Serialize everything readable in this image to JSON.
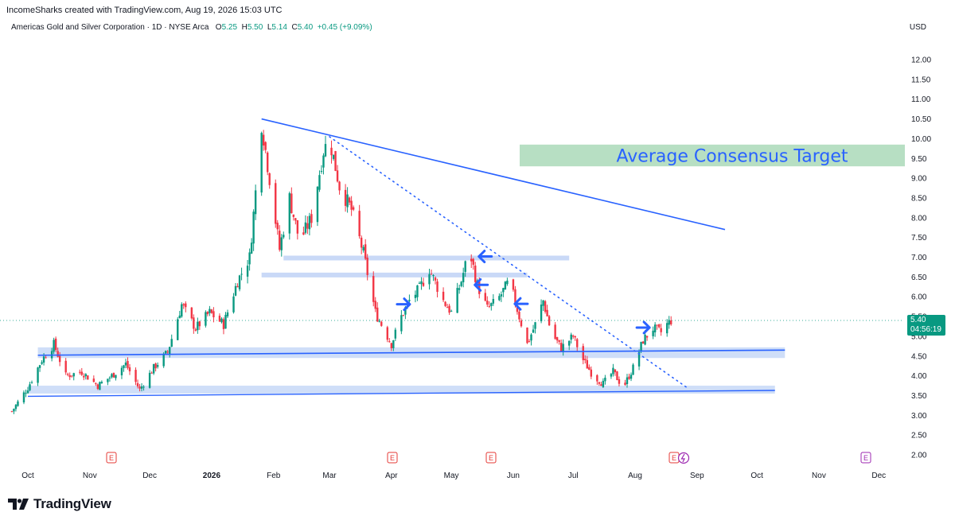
{
  "header": {
    "credit": "IncomeSharks created with TradingView.com, Aug 19, 2026 15:03 UTC",
    "symbol": "Americas Gold and Silver Corporation · 1D · NYSE Arca",
    "ohlc": {
      "o_label": "O",
      "o": "5.25",
      "h_label": "H",
      "h": "5.50",
      "l_label": "L",
      "l": "5.14",
      "c_label": "C",
      "c": "5.40",
      "change": "+0.45 (+9.09%)"
    },
    "currency": "USD"
  },
  "price_tag": {
    "price": "5.40",
    "countdown": "04:56:19"
  },
  "brand": {
    "name": "TradingView"
  },
  "colors": {
    "up": "#089981",
    "down": "#f23645",
    "trendline": "#2962ff",
    "zone": "#bbd0f5",
    "target_zone": "#b7dfc3",
    "target_text": "#2962ff",
    "earnings_icon": "#e53935",
    "future_icon": "#9c27b0"
  },
  "chart_data": {
    "type": "candlestick",
    "y_axis": {
      "min": 2.0,
      "max": 12.0,
      "ticks": [
        "12.00",
        "11.50",
        "11.00",
        "10.50",
        "10.00",
        "9.50",
        "9.00",
        "8.50",
        "8.00",
        "7.50",
        "7.00",
        "6.50",
        "6.00",
        "5.50",
        "5.00",
        "4.50",
        "4.00",
        "3.50",
        "3.00",
        "2.50",
        "2.00"
      ]
    },
    "x_axis": {
      "ticks": [
        "Oct",
        "Nov",
        "Dec",
        "2026",
        "Feb",
        "Mar",
        "Apr",
        "May",
        "Jun",
        "Jul",
        "Aug",
        "Sep",
        "Oct",
        "Nov",
        "Dec"
      ]
    },
    "last_price": 5.4,
    "close_path": [
      [
        "2025-09-23",
        3.1
      ],
      [
        "2025-10-01",
        3.7
      ],
      [
        "2025-10-08",
        4.4
      ],
      [
        "2025-10-14",
        4.8
      ],
      [
        "2025-10-20",
        4.0
      ],
      [
        "2025-10-28",
        4.1
      ],
      [
        "2025-11-05",
        3.75
      ],
      [
        "2025-11-12",
        4.0
      ],
      [
        "2025-11-19",
        4.3
      ],
      [
        "2025-11-26",
        3.65
      ],
      [
        "2025-12-03",
        4.2
      ],
      [
        "2025-12-10",
        4.6
      ],
      [
        "2025-12-17",
        5.8
      ],
      [
        "2025-12-24",
        5.2
      ],
      [
        "2025-12-31",
        5.6
      ],
      [
        "2026-01-07",
        5.3
      ],
      [
        "2026-01-14",
        6.4
      ],
      [
        "2026-01-20",
        7.0
      ],
      [
        "2026-01-24",
        9.2
      ],
      [
        "2026-01-26",
        10.4
      ],
      [
        "2026-01-30",
        9.0
      ],
      [
        "2026-02-04",
        7.2
      ],
      [
        "2026-02-09",
        8.5
      ],
      [
        "2026-02-14",
        7.4
      ],
      [
        "2026-02-20",
        8.0
      ],
      [
        "2026-02-26",
        9.7
      ],
      [
        "2026-03-01",
        10.0
      ],
      [
        "2026-03-06",
        8.8
      ],
      [
        "2026-03-12",
        8.2
      ],
      [
        "2026-03-18",
        7.1
      ],
      [
        "2026-03-20",
        6.6
      ],
      [
        "2026-03-24",
        5.6
      ],
      [
        "2026-03-28",
        5.2
      ],
      [
        "2026-04-01",
        4.8
      ],
      [
        "2026-04-06",
        5.5
      ],
      [
        "2026-04-10",
        5.9
      ],
      [
        "2026-04-15",
        6.2
      ],
      [
        "2026-04-20",
        6.7
      ],
      [
        "2026-04-27",
        5.9
      ],
      [
        "2026-05-01",
        5.6
      ],
      [
        "2026-05-06",
        6.4
      ],
      [
        "2026-05-10",
        7.2
      ],
      [
        "2026-05-14",
        6.3
      ],
      [
        "2026-05-19",
        5.7
      ],
      [
        "2026-05-24",
        5.9
      ],
      [
        "2026-05-30",
        6.4
      ],
      [
        "2026-06-04",
        5.5
      ],
      [
        "2026-06-08",
        4.8
      ],
      [
        "2026-06-12",
        5.3
      ],
      [
        "2026-06-16",
        5.9
      ],
      [
        "2026-06-20",
        5.1
      ],
      [
        "2026-06-25",
        4.7
      ],
      [
        "2026-07-01",
        5.0
      ],
      [
        "2026-07-06",
        4.4
      ],
      [
        "2026-07-11",
        4.0
      ],
      [
        "2026-07-16",
        3.8
      ],
      [
        "2026-07-21",
        4.1
      ],
      [
        "2026-07-26",
        3.7
      ],
      [
        "2026-07-31",
        4.2
      ],
      [
        "2026-08-05",
        4.9
      ],
      [
        "2026-08-10",
        5.2
      ],
      [
        "2026-08-14",
        5.1
      ],
      [
        "2026-08-17",
        5.3
      ],
      [
        "2026-08-19",
        5.4
      ]
    ],
    "annotations": {
      "target_label": "Average Consensus Target",
      "target_zone": [
        9.3,
        9.85
      ],
      "descending_trendline": [
        [
          "2026-01-26",
          10.5
        ],
        [
          "2026-09-15",
          7.7
        ]
      ],
      "dotted_trendline": [
        [
          "2026-03-01",
          10.05
        ],
        [
          "2026-08-27",
          3.7
        ]
      ],
      "support_upper": [
        [
          "2025-10-06",
          4.52
        ],
        [
          "2026-10-15",
          4.65
        ]
      ],
      "support_lower": [
        [
          "2025-10-01",
          3.48
        ],
        [
          "2026-10-10",
          3.63
        ]
      ],
      "resistance_zones": [
        {
          "from": "2026-02-06",
          "to": "2026-06-29",
          "price": 6.98
        },
        {
          "from": "2026-01-26",
          "to": "2026-06-08",
          "price": 6.55
        }
      ],
      "arrows": [
        {
          "date": "2026-05-14",
          "price": 7.02
        },
        {
          "date": "2026-05-12",
          "price": 6.3
        },
        {
          "date": "2026-04-11",
          "price": 5.81
        },
        {
          "date": "2026-06-01",
          "price": 5.82
        },
        {
          "date": "2026-08-09",
          "price": 5.22
        }
      ],
      "earnings_markers": [
        "E",
        "E",
        "E",
        "E",
        "E",
        "E"
      ]
    }
  }
}
